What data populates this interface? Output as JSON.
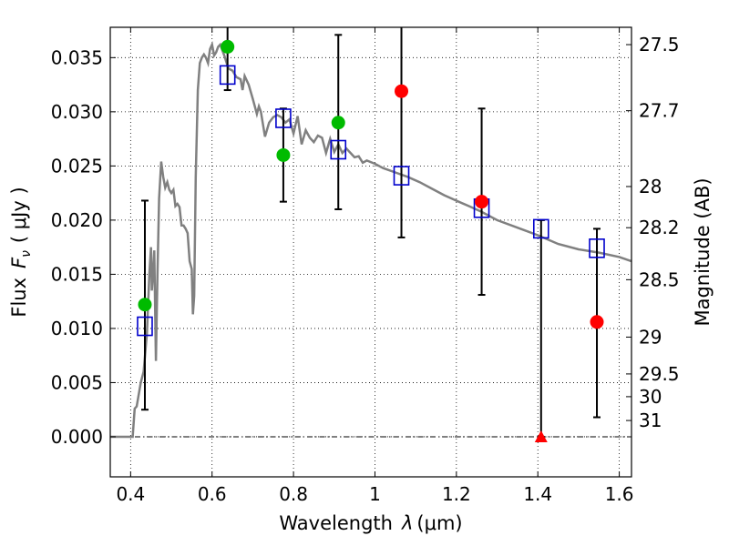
{
  "chart_data": {
    "type": "scatter",
    "xlabel": "Wavelength",
    "xlabel_symbol": "λ",
    "xlabel_unit": "(μm)",
    "ylabel": "Flux",
    "ylabel_symbol": "F",
    "ylabel_subscript": "ν",
    "ylabel_unit": "( μJy )",
    "y2label": "Magnitude (AB)",
    "xlim": [
      0.35,
      1.63
    ],
    "ylim": [
      -0.0037,
      0.0378
    ],
    "grid": true,
    "x_ticks": [
      {
        "value": 0.4,
        "label": "0.4"
      },
      {
        "value": 0.6,
        "label": "0.6"
      },
      {
        "value": 0.8,
        "label": "0.8"
      },
      {
        "value": 1.0,
        "label": "1"
      },
      {
        "value": 1.2,
        "label": "1.2"
      },
      {
        "value": 1.4,
        "label": "1.4"
      },
      {
        "value": 1.6,
        "label": "1.6"
      }
    ],
    "y_ticks": [
      {
        "value": 0.0,
        "label": "0.000"
      },
      {
        "value": 0.005,
        "label": "0.005"
      },
      {
        "value": 0.01,
        "label": "0.010"
      },
      {
        "value": 0.015,
        "label": "0.015"
      },
      {
        "value": 0.02,
        "label": "0.020"
      },
      {
        "value": 0.025,
        "label": "0.025"
      },
      {
        "value": 0.03,
        "label": "0.030"
      },
      {
        "value": 0.035,
        "label": "0.035"
      }
    ],
    "y2_ticks": [
      {
        "flux": 0.0362,
        "label": "27.5"
      },
      {
        "flux": 0.0301,
        "label": "27.7"
      },
      {
        "flux": 0.0231,
        "label": "28"
      },
      {
        "flux": 0.0193,
        "label": "28.2"
      },
      {
        "flux": 0.0145,
        "label": "28.5"
      },
      {
        "flux": 0.0092,
        "label": "29"
      },
      {
        "flux": 0.0058,
        "label": "29.5"
      },
      {
        "flux": 0.0037,
        "label": "30"
      },
      {
        "flux": 0.0015,
        "label": "31"
      }
    ],
    "template_color": "#808080",
    "template_spectrum": [
      [
        0.35,
        0.0
      ],
      [
        0.405,
        0.0
      ],
      [
        0.41,
        0.0026
      ],
      [
        0.415,
        0.0028
      ],
      [
        0.425,
        0.005
      ],
      [
        0.432,
        0.006
      ],
      [
        0.44,
        0.0095
      ],
      [
        0.446,
        0.015
      ],
      [
        0.45,
        0.0175
      ],
      [
        0.452,
        0.0135
      ],
      [
        0.455,
        0.015
      ],
      [
        0.458,
        0.0172
      ],
      [
        0.462,
        0.007
      ],
      [
        0.466,
        0.015
      ],
      [
        0.47,
        0.022
      ],
      [
        0.475,
        0.0254
      ],
      [
        0.48,
        0.024
      ],
      [
        0.485,
        0.023
      ],
      [
        0.49,
        0.0235
      ],
      [
        0.495,
        0.0228
      ],
      [
        0.5,
        0.0225
      ],
      [
        0.505,
        0.0228
      ],
      [
        0.51,
        0.0213
      ],
      [
        0.515,
        0.0215
      ],
      [
        0.52,
        0.0212
      ],
      [
        0.525,
        0.0195
      ],
      [
        0.53,
        0.0195
      ],
      [
        0.535,
        0.0192
      ],
      [
        0.54,
        0.0188
      ],
      [
        0.545,
        0.0162
      ],
      [
        0.55,
        0.0155
      ],
      [
        0.553,
        0.0113
      ],
      [
        0.556,
        0.013
      ],
      [
        0.56,
        0.024
      ],
      [
        0.565,
        0.032
      ],
      [
        0.57,
        0.0345
      ],
      [
        0.575,
        0.035
      ],
      [
        0.58,
        0.0353
      ],
      [
        0.585,
        0.035
      ],
      [
        0.59,
        0.0345
      ],
      [
        0.595,
        0.0358
      ],
      [
        0.6,
        0.0362
      ],
      [
        0.605,
        0.0352
      ],
      [
        0.61,
        0.0355
      ],
      [
        0.615,
        0.036
      ],
      [
        0.62,
        0.0362
      ],
      [
        0.63,
        0.0352
      ],
      [
        0.64,
        0.034
      ],
      [
        0.65,
        0.0338
      ],
      [
        0.66,
        0.0332
      ],
      [
        0.67,
        0.033
      ],
      [
        0.675,
        0.032
      ],
      [
        0.68,
        0.0333
      ],
      [
        0.69,
        0.0325
      ],
      [
        0.7,
        0.0312
      ],
      [
        0.71,
        0.0298
      ],
      [
        0.715,
        0.0305
      ],
      [
        0.72,
        0.03
      ],
      [
        0.73,
        0.0277
      ],
      [
        0.74,
        0.029
      ],
      [
        0.75,
        0.0295
      ],
      [
        0.76,
        0.0297
      ],
      [
        0.77,
        0.0295
      ],
      [
        0.78,
        0.029
      ],
      [
        0.79,
        0.0293
      ],
      [
        0.8,
        0.028
      ],
      [
        0.81,
        0.0296
      ],
      [
        0.82,
        0.027
      ],
      [
        0.83,
        0.0283
      ],
      [
        0.84,
        0.0276
      ],
      [
        0.85,
        0.0272
      ],
      [
        0.86,
        0.0278
      ],
      [
        0.87,
        0.0276
      ],
      [
        0.88,
        0.0262
      ],
      [
        0.89,
        0.0275
      ],
      [
        0.9,
        0.0263
      ],
      [
        0.91,
        0.027
      ],
      [
        0.92,
        0.0262
      ],
      [
        0.93,
        0.0266
      ],
      [
        0.94,
        0.0262
      ],
      [
        0.95,
        0.0258
      ],
      [
        0.96,
        0.0259
      ],
      [
        0.97,
        0.0253
      ],
      [
        0.98,
        0.0255
      ],
      [
        1.0,
        0.0252
      ],
      [
        1.02,
        0.0248
      ],
      [
        1.05,
        0.0244
      ],
      [
        1.08,
        0.024
      ],
      [
        1.11,
        0.0235
      ],
      [
        1.14,
        0.0229
      ],
      [
        1.17,
        0.0223
      ],
      [
        1.2,
        0.0218
      ],
      [
        1.23,
        0.0213
      ],
      [
        1.26,
        0.0208
      ],
      [
        1.3,
        0.02
      ],
      [
        1.35,
        0.0193
      ],
      [
        1.4,
        0.0186
      ],
      [
        1.45,
        0.0178
      ],
      [
        1.5,
        0.0173
      ],
      [
        1.55,
        0.017
      ],
      [
        1.6,
        0.0166
      ],
      [
        1.63,
        0.0162
      ]
    ],
    "model_points": {
      "color": "#0000cc",
      "marker": "open-square",
      "points": [
        {
          "x": 0.435,
          "y": 0.0102
        },
        {
          "x": 0.638,
          "y": 0.0334
        },
        {
          "x": 0.775,
          "y": 0.0294
        },
        {
          "x": 0.91,
          "y": 0.0265
        },
        {
          "x": 1.065,
          "y": 0.0241
        },
        {
          "x": 1.262,
          "y": 0.0211
        },
        {
          "x": 1.408,
          "y": 0.0192
        },
        {
          "x": 1.545,
          "y": 0.0174
        }
      ]
    },
    "observations": [
      {
        "x": 0.435,
        "y": 0.0122,
        "yerr_lo": 0.0025,
        "yerr_hi": 0.0218,
        "color": "#00bb00",
        "marker": "circle"
      },
      {
        "x": 0.638,
        "y": 0.036,
        "yerr_lo": 0.032,
        "yerr_hi": 0.04,
        "color": "#00bb00",
        "marker": "circle"
      },
      {
        "x": 0.775,
        "y": 0.026,
        "yerr_lo": 0.0217,
        "yerr_hi": 0.0303,
        "color": "#00bb00",
        "marker": "circle"
      },
      {
        "x": 0.91,
        "y": 0.029,
        "yerr_lo": 0.021,
        "yerr_hi": 0.0371,
        "color": "#00bb00",
        "marker": "circle"
      },
      {
        "x": 1.065,
        "y": 0.0319,
        "yerr_lo": 0.0184,
        "yerr_hi": 0.042,
        "color": "#ff0000",
        "marker": "circle"
      },
      {
        "x": 1.262,
        "y": 0.0217,
        "yerr_lo": 0.0131,
        "yerr_hi": 0.0303,
        "color": "#ff0000",
        "marker": "circle"
      },
      {
        "x": 1.408,
        "y": 0.0,
        "yerr_lo": 0.0,
        "yerr_hi": 0.02,
        "color": "#ff0000",
        "marker": "triangle"
      },
      {
        "x": 1.545,
        "y": 0.0106,
        "yerr_lo": 0.0018,
        "yerr_hi": 0.0192,
        "color": "#ff0000",
        "marker": "circle"
      }
    ]
  }
}
